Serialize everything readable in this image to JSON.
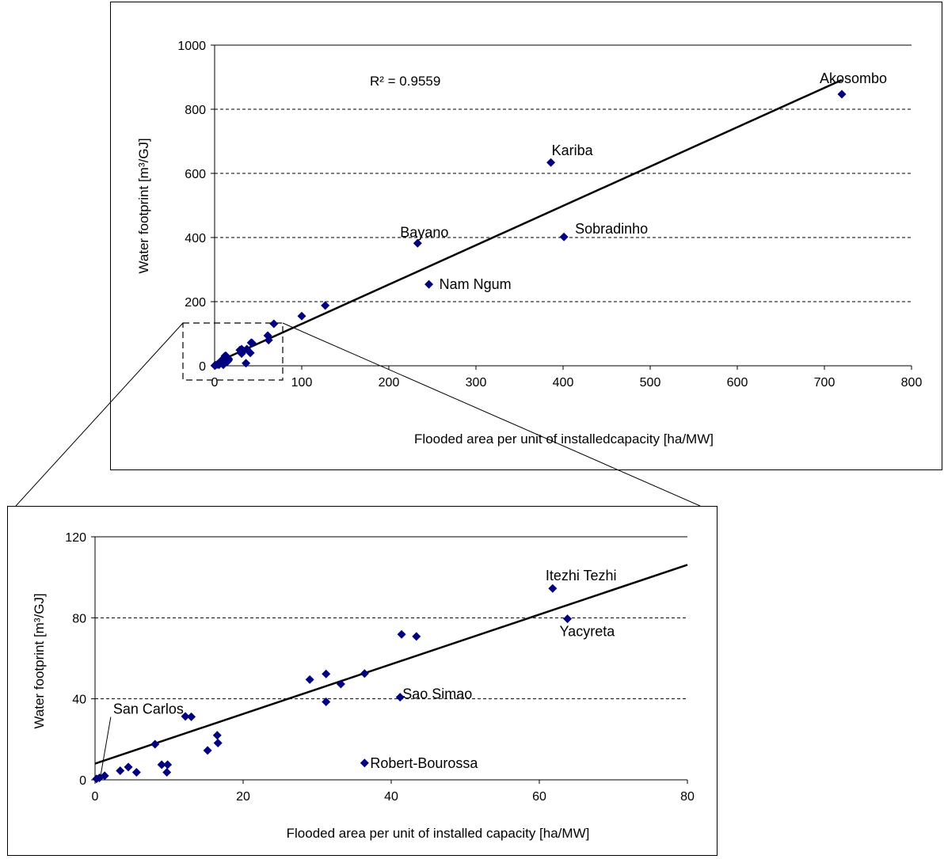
{
  "colors": {
    "marker": "#000080",
    "line": "#000000",
    "grid": "#000000",
    "frame": "#000000"
  },
  "chart_data": [
    {
      "type": "scatter",
      "xlabel": "Flooded area per unit of installedcapacity [ha/MW]",
      "ylabel": "Water footprint [m³/GJ]",
      "xlim": [
        0,
        800
      ],
      "ylim": [
        0,
        1000
      ],
      "xticks": [
        0,
        100,
        200,
        300,
        400,
        500,
        600,
        700,
        800
      ],
      "yticks": [
        0,
        200,
        400,
        600,
        800,
        1000
      ],
      "xtick_labels": [
        "0",
        "100",
        "200",
        "300",
        "400",
        "500",
        "600",
        "700",
        "800"
      ],
      "ytick_labels": [
        "0",
        "200",
        "400",
        "600",
        "800",
        "1000"
      ],
      "grid": "horizontal dashed",
      "annotation": "R² = 0.9559",
      "trendline": {
        "slope": 1.227,
        "intercept": 8
      },
      "points": [
        {
          "x": 720,
          "y": 847,
          "label": "Akosombo"
        },
        {
          "x": 386,
          "y": 634,
          "label": "Kariba"
        },
        {
          "x": 401,
          "y": 402,
          "label": "Sobradinho"
        },
        {
          "x": 233,
          "y": 382,
          "label": "Bayano"
        },
        {
          "x": 246,
          "y": 254,
          "label": "Nam Ngum"
        },
        {
          "x": 127,
          "y": 188,
          "label": ""
        },
        {
          "x": 100,
          "y": 155,
          "label": ""
        },
        {
          "x": 68,
          "y": 131,
          "label": ""
        },
        {
          "x": 61,
          "y": 94,
          "label": ""
        },
        {
          "x": 62,
          "y": 80,
          "label": ""
        },
        {
          "x": 42,
          "y": 72,
          "label": ""
        },
        {
          "x": 43,
          "y": 71,
          "label": ""
        },
        {
          "x": 37,
          "y": 52,
          "label": ""
        },
        {
          "x": 41,
          "y": 40,
          "label": ""
        },
        {
          "x": 36,
          "y": 8,
          "label": ""
        },
        {
          "x": 31,
          "y": 52,
          "label": ""
        },
        {
          "x": 29,
          "y": 49,
          "label": ""
        },
        {
          "x": 33,
          "y": 47,
          "label": ""
        },
        {
          "x": 31,
          "y": 38,
          "label": ""
        },
        {
          "x": 16,
          "y": 22,
          "label": ""
        },
        {
          "x": 16,
          "y": 18,
          "label": ""
        },
        {
          "x": 12,
          "y": 31,
          "label": ""
        },
        {
          "x": 13,
          "y": 31,
          "label": ""
        },
        {
          "x": 15,
          "y": 14,
          "label": ""
        },
        {
          "x": 8,
          "y": 17,
          "label": ""
        },
        {
          "x": 9,
          "y": 7,
          "label": ""
        },
        {
          "x": 10,
          "y": 7,
          "label": ""
        },
        {
          "x": 10,
          "y": 3,
          "label": ""
        },
        {
          "x": 5,
          "y": 6,
          "label": ""
        },
        {
          "x": 3,
          "y": 4,
          "label": ""
        },
        {
          "x": 5,
          "y": 3,
          "label": ""
        },
        {
          "x": 1,
          "y": 2,
          "label": ""
        },
        {
          "x": 0.5,
          "y": 1,
          "label": ""
        },
        {
          "x": 0.2,
          "y": 0.5,
          "label": ""
        }
      ]
    },
    {
      "type": "scatter",
      "xlabel": "Flooded area per unit of installed capacity [ha/MW]",
      "ylabel": "Water footprint [m³/GJ]",
      "xlim": [
        0,
        80
      ],
      "ylim": [
        0,
        120
      ],
      "xticks": [
        0,
        20,
        40,
        60,
        80
      ],
      "yticks": [
        0,
        40,
        80,
        120
      ],
      "xtick_labels": [
        "0",
        "20",
        "40",
        "60",
        "80"
      ],
      "ytick_labels": [
        "0",
        "40",
        "80",
        "120"
      ],
      "grid": "horizontal dashed",
      "trendline": {
        "slope": 1.227,
        "intercept": 8
      },
      "points": [
        {
          "x": 61.8,
          "y": 94.5,
          "label": "Itezhi Tezhi"
        },
        {
          "x": 63.8,
          "y": 79.5,
          "label": "Yacyreta"
        },
        {
          "x": 41.2,
          "y": 40.8,
          "label": "Sao Simao"
        },
        {
          "x": 36.4,
          "y": 8.3,
          "label": "Robert-Bourossa"
        },
        {
          "x": 0.2,
          "y": 0.5,
          "label": "San Carlos"
        },
        {
          "x": 41.4,
          "y": 71.8,
          "label": ""
        },
        {
          "x": 43.4,
          "y": 70.8,
          "label": ""
        },
        {
          "x": 36.4,
          "y": 52.5,
          "label": ""
        },
        {
          "x": 31.2,
          "y": 52.3,
          "label": ""
        },
        {
          "x": 29.0,
          "y": 49.5,
          "label": ""
        },
        {
          "x": 33.2,
          "y": 47.3,
          "label": ""
        },
        {
          "x": 31.2,
          "y": 38.5,
          "label": ""
        },
        {
          "x": 12.2,
          "y": 31.3,
          "label": ""
        },
        {
          "x": 13.0,
          "y": 31.1,
          "label": ""
        },
        {
          "x": 16.5,
          "y": 22.0,
          "label": ""
        },
        {
          "x": 16.6,
          "y": 18.2,
          "label": ""
        },
        {
          "x": 15.2,
          "y": 14.5,
          "label": ""
        },
        {
          "x": 8.1,
          "y": 17.6,
          "label": ""
        },
        {
          "x": 9.0,
          "y": 7.5,
          "label": ""
        },
        {
          "x": 9.8,
          "y": 7.5,
          "label": ""
        },
        {
          "x": 9.7,
          "y": 3.7,
          "label": ""
        },
        {
          "x": 4.5,
          "y": 6.3,
          "label": ""
        },
        {
          "x": 3.4,
          "y": 4.5,
          "label": ""
        },
        {
          "x": 5.6,
          "y": 3.7,
          "label": ""
        },
        {
          "x": 1.3,
          "y": 2.0,
          "label": ""
        },
        {
          "x": 0.6,
          "y": 1.0,
          "label": ""
        }
      ]
    }
  ]
}
